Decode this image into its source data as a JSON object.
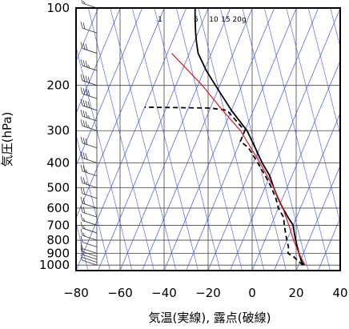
{
  "chart_data": {
    "type": "line",
    "title": "",
    "xlabel": "気温(実線), 露点(破線)",
    "ylabel": "気圧(hPa)",
    "xlim": [
      -80,
      40
    ],
    "ylim": [
      1050,
      100
    ],
    "y_scale": "log",
    "grid": "on",
    "x_ticks": [
      -80,
      -60,
      -40,
      -20,
      0,
      20,
      40
    ],
    "x_tick_labels": [
      "−80",
      "−60",
      "−40",
      "−20",
      "0",
      "20",
      "40"
    ],
    "y_ticks": [
      100,
      200,
      300,
      400,
      500,
      600,
      700,
      800,
      900,
      1000
    ],
    "y_tick_labels": [
      "100",
      "200",
      "300",
      "400",
      "500",
      "600",
      "700",
      "800",
      "900",
      "1000"
    ],
    "mixing_ratio_labels": [
      "1",
      "5",
      "10",
      "15",
      "20g"
    ],
    "series": [
      {
        "role": "temperature",
        "line_style": "solid",
        "color": "#000000",
        "points": [
          {
            "p": 1000,
            "t": 23
          },
          {
            "p": 975,
            "t": 21
          },
          {
            "p": 950,
            "t": 20
          },
          {
            "p": 925,
            "t": 19
          },
          {
            "p": 900,
            "t": 18
          },
          {
            "p": 850,
            "t": 16
          },
          {
            "p": 800,
            "t": 14
          },
          {
            "p": 750,
            "t": 12
          },
          {
            "p": 700,
            "t": 10
          },
          {
            "p": 650,
            "t": 6
          },
          {
            "p": 600,
            "t": 2
          },
          {
            "p": 550,
            "t": -2
          },
          {
            "p": 500,
            "t": -6
          },
          {
            "p": 450,
            "t": -10
          },
          {
            "p": 400,
            "t": -16
          },
          {
            "p": 350,
            "t": -22
          },
          {
            "p": 300,
            "t": -29
          },
          {
            "p": 250,
            "t": -40
          },
          {
            "p": 200,
            "t": -52
          },
          {
            "p": 175,
            "t": -59
          },
          {
            "p": 150,
            "t": -66
          },
          {
            "p": 135,
            "t": -69
          },
          {
            "p": 125,
            "t": -71
          },
          {
            "p": 110,
            "t": -74
          },
          {
            "p": 100,
            "t": -76
          }
        ]
      },
      {
        "role": "dewpoint",
        "line_style": "dashed",
        "color": "#000000",
        "points": [
          {
            "p": 1000,
            "t": 22
          },
          {
            "p": 975,
            "t": 20
          },
          {
            "p": 950,
            "t": 18
          },
          {
            "p": 925,
            "t": 16
          },
          {
            "p": 900,
            "t": 13
          },
          {
            "p": 850,
            "t": 12
          },
          {
            "p": 800,
            "t": 10
          },
          {
            "p": 750,
            "t": 8
          },
          {
            "p": 700,
            "t": 6
          },
          {
            "p": 650,
            "t": 4
          },
          {
            "p": 600,
            "t": 0
          },
          {
            "p": 550,
            "t": -3
          },
          {
            "p": 500,
            "t": -7
          },
          {
            "p": 450,
            "t": -12
          },
          {
            "p": 400,
            "t": -18
          },
          {
            "p": 350,
            "t": -25
          },
          {
            "p": 330,
            "t": -30
          },
          {
            "p": 300,
            "t": -30
          },
          {
            "p": 250,
            "t": -42
          },
          {
            "p": 245,
            "t": -50
          },
          {
            "p": 243,
            "t": -80
          }
        ]
      },
      {
        "role": "parcel",
        "line_style": "solid",
        "color": "#d62020",
        "points": [
          {
            "p": 1000,
            "t": 23
          },
          {
            "p": 900,
            "t": 18
          },
          {
            "p": 800,
            "t": 13
          },
          {
            "p": 700,
            "t": 8
          },
          {
            "p": 600,
            "t": 2
          },
          {
            "p": 500,
            "t": -6
          },
          {
            "p": 400,
            "t": -17
          },
          {
            "p": 300,
            "t": -32
          },
          {
            "p": 250,
            "t": -44
          },
          {
            "p": 200,
            "t": -58
          },
          {
            "p": 150,
            "t": -78
          }
        ]
      }
    ],
    "wind_barbs": [
      {
        "p": 1000,
        "speed_kt": 5
      },
      {
        "p": 975,
        "speed_kt": 5
      },
      {
        "p": 950,
        "speed_kt": 10
      },
      {
        "p": 925,
        "speed_kt": 10
      },
      {
        "p": 900,
        "speed_kt": 10
      },
      {
        "p": 850,
        "speed_kt": 10
      },
      {
        "p": 800,
        "speed_kt": 15
      },
      {
        "p": 750,
        "speed_kt": 15
      },
      {
        "p": 700,
        "speed_kt": 15
      },
      {
        "p": 650,
        "speed_kt": 20
      },
      {
        "p": 600,
        "speed_kt": 20
      },
      {
        "p": 550,
        "speed_kt": 20
      },
      {
        "p": 500,
        "speed_kt": 25
      },
      {
        "p": 450,
        "speed_kt": 25
      },
      {
        "p": 400,
        "speed_kt": 30
      },
      {
        "p": 350,
        "speed_kt": 30
      },
      {
        "p": 300,
        "speed_kt": 35
      },
      {
        "p": 275,
        "speed_kt": 35
      },
      {
        "p": 250,
        "speed_kt": 40
      },
      {
        "p": 225,
        "speed_kt": 40
      },
      {
        "p": 200,
        "speed_kt": 40
      },
      {
        "p": 175,
        "speed_kt": 35
      },
      {
        "p": 150,
        "speed_kt": 30
      },
      {
        "p": 125,
        "speed_kt": 20
      },
      {
        "p": 100,
        "speed_kt": 15
      }
    ],
    "colors": {
      "grid": "#444444",
      "isotherm_diagonals": "#4455dd",
      "frame": "#000000"
    }
  }
}
